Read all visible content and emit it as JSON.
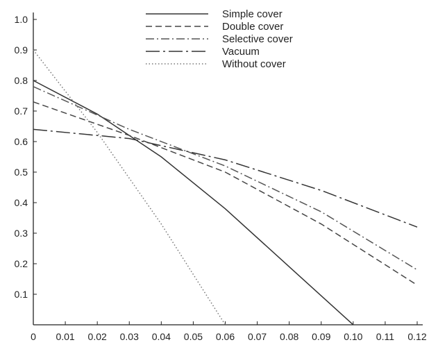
{
  "chart_data": {
    "type": "line",
    "title": "",
    "xlabel": "",
    "ylabel": "",
    "xlim": [
      0,
      0.12
    ],
    "ylim": [
      0,
      1.0
    ],
    "grid": false,
    "legend_position": "top-center",
    "x_ticks": [
      "0",
      "0.01",
      "0.02",
      "0.03",
      "0.04",
      "0.05",
      "0.06",
      "0.07",
      "0.08",
      "0.09",
      "0.10",
      "0.11",
      "0.12"
    ],
    "x_tick_values": [
      0,
      0.01,
      0.02,
      0.03,
      0.04,
      0.05,
      0.06,
      0.07,
      0.08,
      0.09,
      0.1,
      0.11,
      0.12
    ],
    "y_ticks": [
      "0.1",
      "0.2",
      "0.3",
      "0.4",
      "0.5",
      "0.6",
      "0.7",
      "0.8",
      "0.9",
      "1.0"
    ],
    "y_tick_values": [
      0.1,
      0.2,
      0.3,
      0.4,
      0.5,
      0.6,
      0.7,
      0.8,
      0.9,
      1.0
    ],
    "series": [
      {
        "name": "Simple cover",
        "style": "solid",
        "color": "#333333",
        "x": [
          0,
          0.02,
          0.04,
          0.06,
          0.08,
          0.1
        ],
        "y": [
          0.8,
          0.69,
          0.55,
          0.38,
          0.19,
          0.0
        ]
      },
      {
        "name": "Double cover",
        "style": "dashed",
        "color": "#444444",
        "x": [
          0,
          0.03,
          0.06,
          0.09,
          0.12
        ],
        "y": [
          0.73,
          0.62,
          0.5,
          0.33,
          0.13
        ]
      },
      {
        "name": "Selective cover",
        "style": "dashdot",
        "color": "#555555",
        "x": [
          0,
          0.03,
          0.06,
          0.09,
          0.12
        ],
        "y": [
          0.78,
          0.64,
          0.52,
          0.37,
          0.18
        ]
      },
      {
        "name": "Vacuum",
        "style": "longdash",
        "color": "#333333",
        "x": [
          0,
          0.03,
          0.06,
          0.09,
          0.12
        ],
        "y": [
          0.64,
          0.61,
          0.54,
          0.44,
          0.32
        ]
      },
      {
        "name": "Without cover",
        "style": "dotted",
        "color": "#777777",
        "x": [
          0,
          0.02,
          0.04,
          0.06
        ],
        "y": [
          0.9,
          0.63,
          0.33,
          0.0
        ]
      }
    ]
  }
}
